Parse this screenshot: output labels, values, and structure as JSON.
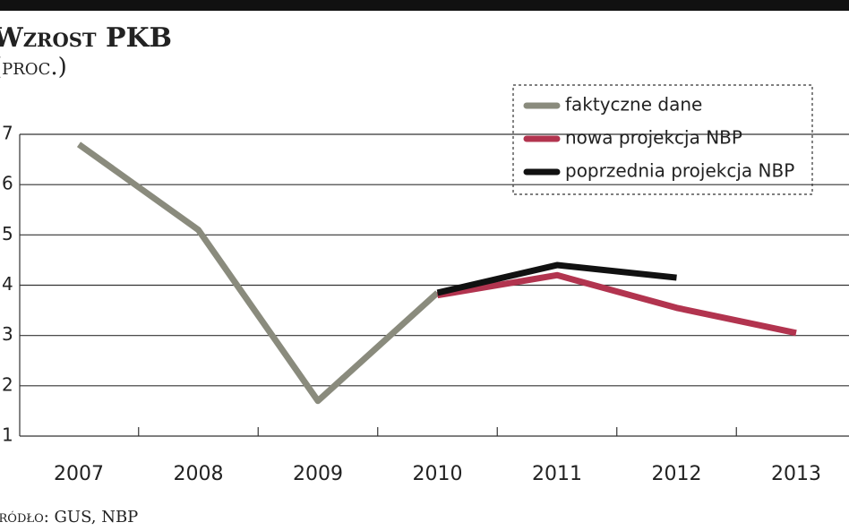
{
  "chart_data": {
    "type": "line",
    "title": "Wzrost PKB",
    "subtitle": "(proc.)",
    "source": "Źródło: GUS, NBP",
    "categories": [
      "2007",
      "2008",
      "2009",
      "2010",
      "2011",
      "2012",
      "2013"
    ],
    "series": [
      {
        "name": "faktyczne dane",
        "color": "#8a8b7d",
        "values": [
          6.8,
          5.1,
          1.7,
          3.85,
          null,
          null,
          null
        ]
      },
      {
        "name": "nowa projekcja NBP",
        "color": "#b2344f",
        "values": [
          null,
          null,
          null,
          3.8,
          4.2,
          3.55,
          3.05
        ]
      },
      {
        "name": "poprzednia projekcja NBP",
        "color": "#111111",
        "values": [
          null,
          null,
          null,
          3.85,
          4.4,
          4.15,
          null
        ]
      }
    ],
    "ylim": [
      1,
      7
    ],
    "yticks": [
      1,
      2,
      3,
      4,
      5,
      6,
      7
    ],
    "grid": true
  }
}
